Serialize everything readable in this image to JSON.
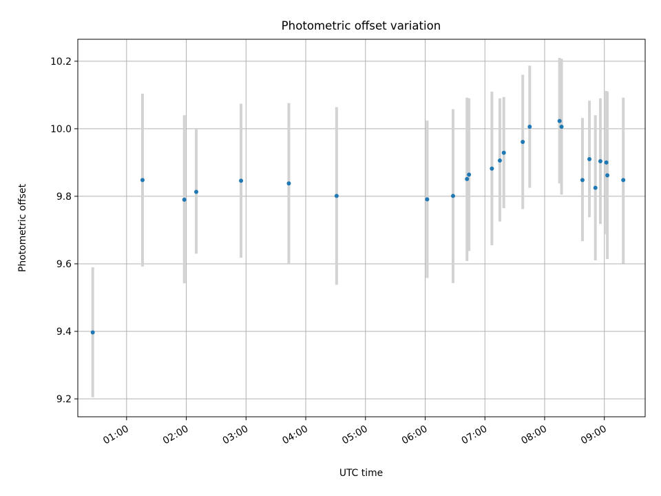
{
  "chart_data": {
    "type": "scatter",
    "title": "Photometric offset variation",
    "xlabel": "UTC time",
    "ylabel": "Photometric offset",
    "xlim": [
      "00:11",
      "09:41"
    ],
    "ylim": [
      9.147,
      10.265
    ],
    "grid": true,
    "x_ticks": [
      "01:00",
      "02:00",
      "03:00",
      "04:00",
      "05:00",
      "06:00",
      "07:00",
      "08:00",
      "09:00"
    ],
    "y_ticks": [
      "9.2",
      "9.4",
      "9.6",
      "9.8",
      "10.0",
      "10.2"
    ],
    "colors": {
      "marker": "#1f77b4",
      "errorbar": "#d3d3d3",
      "grid": "#b0b0b0"
    },
    "points": [
      {
        "x": "00:26",
        "y": 9.397,
        "lo": 9.205,
        "hi": 9.59
      },
      {
        "x": "01:16",
        "y": 9.848,
        "lo": 9.592,
        "hi": 10.104
      },
      {
        "x": "01:58",
        "y": 9.79,
        "lo": 9.542,
        "hi": 10.04
      },
      {
        "x": "02:10",
        "y": 9.813,
        "lo": 9.63,
        "hi": 10.0
      },
      {
        "x": "02:55",
        "y": 9.846,
        "lo": 9.618,
        "hi": 10.074
      },
      {
        "x": "03:43",
        "y": 9.838,
        "lo": 9.6,
        "hi": 10.076
      },
      {
        "x": "04:31",
        "y": 9.801,
        "lo": 9.538,
        "hi": 10.064
      },
      {
        "x": "06:02",
        "y": 9.791,
        "lo": 9.558,
        "hi": 10.024
      },
      {
        "x": "06:28",
        "y": 9.801,
        "lo": 9.543,
        "hi": 10.058
      },
      {
        "x": "06:42",
        "y": 9.851,
        "lo": 9.608,
        "hi": 10.092
      },
      {
        "x": "06:44",
        "y": 9.864,
        "lo": 9.638,
        "hi": 10.09
      },
      {
        "x": "07:07",
        "y": 9.882,
        "lo": 9.655,
        "hi": 10.11
      },
      {
        "x": "07:15",
        "y": 9.906,
        "lo": 9.725,
        "hi": 10.09
      },
      {
        "x": "07:19",
        "y": 9.929,
        "lo": 9.765,
        "hi": 10.094
      },
      {
        "x": "07:38",
        "y": 9.961,
        "lo": 9.762,
        "hi": 10.16
      },
      {
        "x": "07:45",
        "y": 10.006,
        "lo": 9.825,
        "hi": 10.187
      },
      {
        "x": "08:15",
        "y": 10.023,
        "lo": 9.838,
        "hi": 10.21
      },
      {
        "x": "08:17",
        "y": 10.006,
        "lo": 9.805,
        "hi": 10.207
      },
      {
        "x": "08:38",
        "y": 9.848,
        "lo": 9.667,
        "hi": 10.032
      },
      {
        "x": "08:45",
        "y": 9.91,
        "lo": 9.738,
        "hi": 10.083
      },
      {
        "x": "08:51",
        "y": 9.825,
        "lo": 9.61,
        "hi": 10.04
      },
      {
        "x": "08:56",
        "y": 9.904,
        "lo": 9.718,
        "hi": 10.09
      },
      {
        "x": "09:02",
        "y": 9.9,
        "lo": 9.688,
        "hi": 10.112
      },
      {
        "x": "09:03",
        "y": 9.862,
        "lo": 9.614,
        "hi": 10.11
      },
      {
        "x": "09:19",
        "y": 9.848,
        "lo": 9.601,
        "hi": 10.092
      }
    ]
  }
}
